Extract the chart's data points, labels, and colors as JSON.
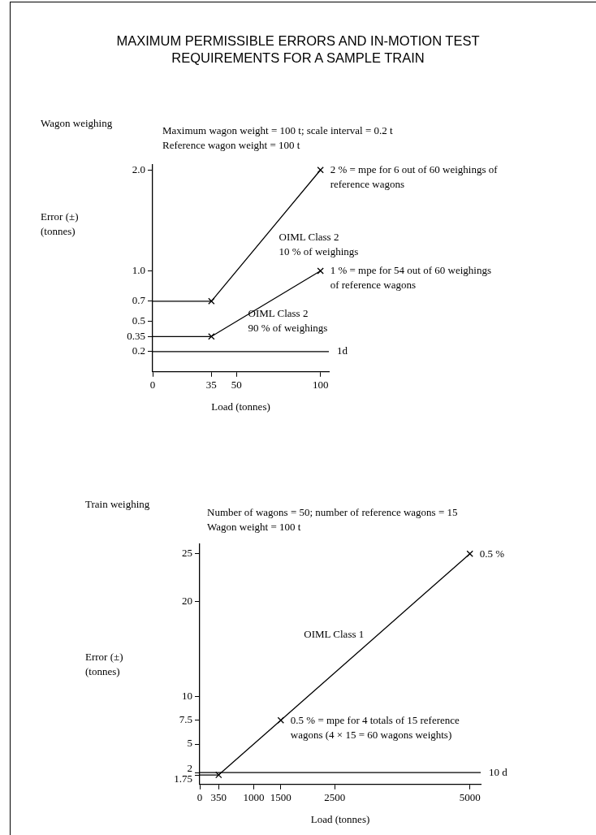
{
  "chart_data": [
    {
      "type": "line",
      "title": "MAXIMUM PERMISSIBLE ERRORS AND IN-MOTION TEST REQUIREMENTS FOR A SAMPLE TRAIN",
      "subtitle": "Wagon weighing",
      "xlabel": "Load (tonnes)",
      "ylabel": "Error (±)\n(tonnes)",
      "series": [
        {
          "name": "OIML Class 2\n10 % of weighings",
          "color": "#000000",
          "x": [
            0,
            35,
            100
          ],
          "values": [
            0.7,
            0.7,
            2.0
          ]
        },
        {
          "name": "OIML Class 2\n90 % of weighings",
          "color": "#000000",
          "x": [
            0,
            35,
            100
          ],
          "values": [
            0.35,
            0.35,
            1.0
          ]
        }
      ],
      "xlim": [
        0,
        105
      ],
      "xticks": [
        0,
        35,
        50,
        100
      ],
      "ylim": [
        0,
        2.05
      ],
      "yticks": [
        0.2,
        0.35,
        0.5,
        0.7,
        {
          "value": 1.0,
          "label": "1.0"
        },
        {
          "value": 2.0,
          "label": "2.0"
        }
      ],
      "ref_lines": [
        {
          "axis": "y",
          "value": 0.2,
          "label": "1d",
          "color": "#000000"
        }
      ],
      "annotations": [
        "Maximum wagon weight = 100 t; scale interval = 0.2 t",
        "Reference wagon weight = 100 t",
        {
          "text": "2 % = mpe for 6 out of 60 weighings of\nreference wagons",
          "x": 100,
          "y": 2.0
        },
        {
          "text": "1 % = mpe for 54 out of 60 weighings\nof reference wagons",
          "x": 100,
          "y": 1.0
        }
      ],
      "marker": "cross",
      "line_style": "solid",
      "grid": false,
      "legend": false
    },
    {
      "type": "line",
      "title": "Train weighing",
      "xlabel": "Load (tonnes)",
      "ylabel": "Error (±)\n(tonnes)",
      "series": [
        {
          "name": "OIML Class 1",
          "color": "#000000",
          "x": [
            0,
            350,
            1500,
            5000
          ],
          "values": [
            1.75,
            1.75,
            7.5,
            25
          ]
        }
      ],
      "xlim": [
        0,
        5200
      ],
      "xticks": [
        0,
        350,
        1000,
        1500,
        2500,
        5000
      ],
      "ylim": [
        0.75,
        26
      ],
      "yticks": [
        1.75,
        2,
        5,
        7.5,
        10,
        20,
        25
      ],
      "ref_lines": [
        {
          "axis": "y",
          "value": 2,
          "label": "10 d",
          "color": "#000000"
        }
      ],
      "annotations": [
        "Number of wagons = 50; number of reference wagons = 15",
        "Wagon weight = 100 t",
        {
          "text": "0.5 %",
          "x": 5000,
          "y": 25
        },
        {
          "text": "0.5 % = mpe for 4 totals of 15 reference\nwagons (4 × 15 = 60 wagons weights)",
          "x": 1500,
          "y": 7.5
        }
      ],
      "marker": "cross",
      "line_style": "solid",
      "grid": false,
      "legend": false
    }
  ]
}
